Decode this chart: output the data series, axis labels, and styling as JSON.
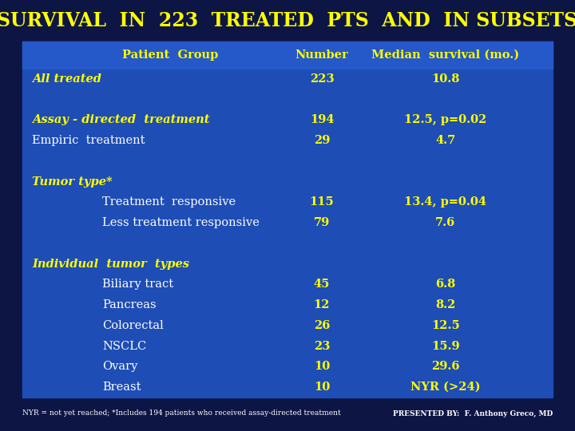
{
  "title": "SURVIVAL  IN  223  TREATED  PTS  AND  IN SUBSETS",
  "title_color": "#FFFF00",
  "title_bg": "#0d1545",
  "title_fontsize": 17,
  "table_bg": "#1e4db5",
  "header_color": "#FFFF00",
  "header_row": [
    "Patient  Group",
    "Number",
    "Median  survival (mo.)"
  ],
  "rows": [
    {
      "label": "All treated",
      "indent": 0,
      "italic": true,
      "bold": true,
      "number": "223",
      "median": "10.8",
      "label_color": "#FFFF00",
      "num_color": "#FFFF00",
      "med_color": "#FFFF00"
    },
    {
      "label": "",
      "indent": 0,
      "italic": false,
      "bold": false,
      "number": "",
      "median": "",
      "label_color": "#FFFF00",
      "num_color": "#FFFF00",
      "med_color": "#FFFF00"
    },
    {
      "label": "Assay - directed  treatment",
      "indent": 0,
      "italic": true,
      "bold": true,
      "number": "194",
      "median": "12.5, p=0.02",
      "label_color": "#FFFF00",
      "num_color": "#FFFF00",
      "med_color": "#FFFF00"
    },
    {
      "label": "Empiric  treatment",
      "indent": 0,
      "italic": false,
      "bold": false,
      "number": "29",
      "median": "4.7",
      "label_color": "#FFFFFF",
      "num_color": "#FFFF00",
      "med_color": "#FFFF00"
    },
    {
      "label": "",
      "indent": 0,
      "italic": false,
      "bold": false,
      "number": "",
      "median": "",
      "label_color": "#FFFF00",
      "num_color": "#FFFF00",
      "med_color": "#FFFF00"
    },
    {
      "label": "Tumor type*",
      "indent": 0,
      "italic": true,
      "bold": true,
      "number": "",
      "median": "",
      "label_color": "#FFFF00",
      "num_color": "#FFFF00",
      "med_color": "#FFFF00"
    },
    {
      "label": "Treatment  responsive",
      "indent": 1,
      "italic": false,
      "bold": false,
      "number": "115",
      "median": "13.4, p=0.04",
      "label_color": "#FFFFFF",
      "num_color": "#FFFF00",
      "med_color": "#FFFF00"
    },
    {
      "label": "Less treatment responsive",
      "indent": 1,
      "italic": false,
      "bold": false,
      "number": "79",
      "median": "7.6",
      "label_color": "#FFFFFF",
      "num_color": "#FFFF00",
      "med_color": "#FFFF00"
    },
    {
      "label": "",
      "indent": 0,
      "italic": false,
      "bold": false,
      "number": "",
      "median": "",
      "label_color": "#FFFF00",
      "num_color": "#FFFF00",
      "med_color": "#FFFF00"
    },
    {
      "label": "Individual  tumor  types",
      "indent": 0,
      "italic": true,
      "bold": true,
      "number": "",
      "median": "",
      "label_color": "#FFFF00",
      "num_color": "#FFFF00",
      "med_color": "#FFFF00"
    },
    {
      "label": "Biliary tract",
      "indent": 1,
      "italic": false,
      "bold": false,
      "number": "45",
      "median": "6.8",
      "label_color": "#FFFFFF",
      "num_color": "#FFFF00",
      "med_color": "#FFFF00"
    },
    {
      "label": "Pancreas",
      "indent": 1,
      "italic": false,
      "bold": false,
      "number": "12",
      "median": "8.2",
      "label_color": "#FFFFFF",
      "num_color": "#FFFF00",
      "med_color": "#FFFF00"
    },
    {
      "label": "Colorectal",
      "indent": 1,
      "italic": false,
      "bold": false,
      "number": "26",
      "median": "12.5",
      "label_color": "#FFFFFF",
      "num_color": "#FFFF00",
      "med_color": "#FFFF00"
    },
    {
      "label": "NSCLC",
      "indent": 1,
      "italic": false,
      "bold": false,
      "number": "23",
      "median": "15.9",
      "label_color": "#FFFFFF",
      "num_color": "#FFFF00",
      "med_color": "#FFFF00"
    },
    {
      "label": "Ovary",
      "indent": 1,
      "italic": false,
      "bold": false,
      "number": "10",
      "median": "29.6",
      "label_color": "#FFFFFF",
      "num_color": "#FFFF00",
      "med_color": "#FFFF00"
    },
    {
      "label": "Breast",
      "indent": 1,
      "italic": false,
      "bold": false,
      "number": "10",
      "median": "NYR (>24)",
      "label_color": "#FFFFFF",
      "num_color": "#FFFF00",
      "med_color": "#FFFF00"
    }
  ],
  "footer_left": "NYR = not yet reached; *Includes 194 patients who received assay-directed treatment",
  "footer_right": "PRESENTED BY:  F. Anthony Greco, MD",
  "footer_color": "#FFFFFF",
  "bg_outer": "#0d1545"
}
